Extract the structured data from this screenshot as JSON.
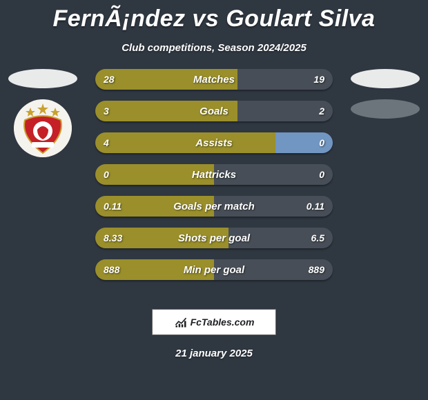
{
  "title": "FernÃ¡ndez vs Goulart Silva",
  "subtitle": "Club competitions, Season 2024/2025",
  "date": "21 january 2025",
  "attribution": "FcTables.com",
  "colors": {
    "background": "#2f3741",
    "player1_bar": "#9a8f2a",
    "player2_bar": "#474e57",
    "player2_alt_bar": "#7196c2",
    "oval_white": "#e9eaea",
    "oval_grey": "#6c757c",
    "crest_red": "#c52027",
    "crest_gold": "#c9a12f"
  },
  "left_column": {
    "ovals": [
      "white"
    ],
    "crest": true
  },
  "right_column": {
    "ovals": [
      "white",
      "grey"
    ]
  },
  "bars": [
    {
      "label": "Matches",
      "left_val": "28",
      "right_val": "19",
      "left_pct": 60,
      "right_pct": 40,
      "right_color": "player2_bar"
    },
    {
      "label": "Goals",
      "left_val": "3",
      "right_val": "2",
      "left_pct": 60,
      "right_pct": 40,
      "right_color": "player2_bar"
    },
    {
      "label": "Assists",
      "left_val": "4",
      "right_val": "0",
      "left_pct": 76,
      "right_pct": 24,
      "right_color": "player2_alt_bar"
    },
    {
      "label": "Hattricks",
      "left_val": "0",
      "right_val": "0",
      "left_pct": 50,
      "right_pct": 50,
      "right_color": "player2_bar"
    },
    {
      "label": "Goals per match",
      "left_val": "0.11",
      "right_val": "0.11",
      "left_pct": 50,
      "right_pct": 50,
      "right_color": "player2_bar"
    },
    {
      "label": "Shots per goal",
      "left_val": "8.33",
      "right_val": "6.5",
      "left_pct": 56,
      "right_pct": 44,
      "right_color": "player2_bar"
    },
    {
      "label": "Min per goal",
      "left_val": "888",
      "right_val": "889",
      "left_pct": 50,
      "right_pct": 50,
      "right_color": "player2_bar"
    }
  ]
}
